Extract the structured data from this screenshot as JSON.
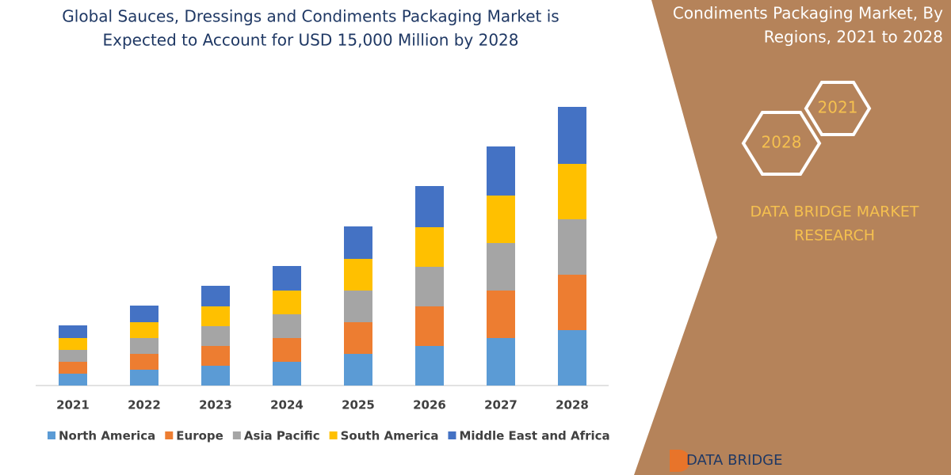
{
  "chart_data": {
    "type": "stacked_bar",
    "title": [
      "Global Sauces, Dressings and Condiments Packaging Market is",
      "Expected to Account for USD 15,000 Million by 2028"
    ],
    "categories": [
      "2021",
      "2022",
      "2023",
      "2024",
      "2025",
      "2026",
      "2027",
      "2028"
    ],
    "series": [
      {
        "name": "North America",
        "color": "#5b9bd5",
        "values": [
          15,
          20,
          25,
          30,
          40,
          50,
          60,
          70
        ]
      },
      {
        "name": "Europe",
        "color": "#ed7d31",
        "values": [
          15,
          20,
          25,
          30,
          40,
          50,
          60,
          70
        ]
      },
      {
        "name": "Asia Pacific",
        "color": "#a5a5a5",
        "values": [
          15,
          20,
          25,
          30,
          40,
          50,
          60,
          70
        ]
      },
      {
        "name": "South America",
        "color": "#ffc000",
        "values": [
          15,
          20,
          25,
          30,
          40,
          50,
          60,
          70
        ]
      },
      {
        "name": "Middle East and Africa",
        "color": "#4472c4",
        "values": [
          16,
          21,
          26,
          31,
          41,
          52,
          62,
          72
        ]
      }
    ]
  },
  "side_panel": {
    "title": [
      "Condiments Packaging Market, By",
      "Regions, 2021 to 2028"
    ],
    "hexagons": [
      "2021",
      "2028"
    ],
    "brand": [
      "DATA BRIDGE MARKET",
      "RESEARCH"
    ],
    "logo": "DATA BRIDGE"
  }
}
